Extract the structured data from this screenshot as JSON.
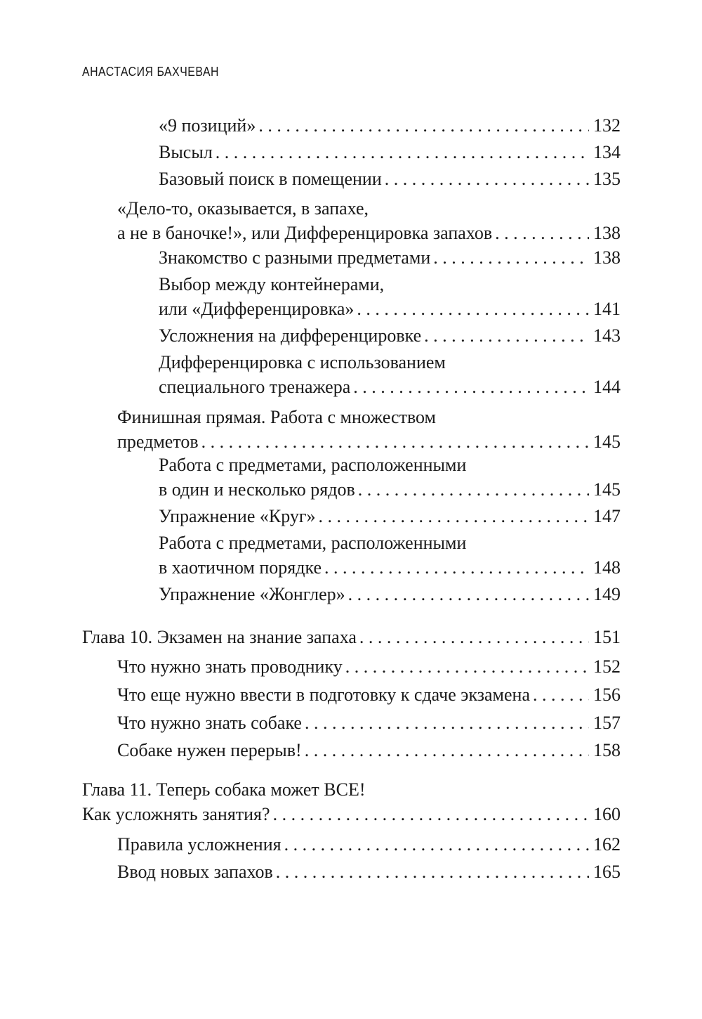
{
  "running_head": "АНАСТАСИЯ БАХЧЕВАН",
  "toc": [
    {
      "level": 2,
      "lines": [
        "«9 позиций»"
      ],
      "page": "132"
    },
    {
      "level": 2,
      "lines": [
        "Высыл"
      ],
      "page": "134"
    },
    {
      "level": 2,
      "lines": [
        "Базовый поиск в помещении"
      ],
      "page": "135"
    },
    {
      "level": 1,
      "lines": [
        "«Дело-то, оказывается, в запахе,",
        "а не в баночке!», или Дифференцировка запахов"
      ],
      "page": "138"
    },
    {
      "level": 2,
      "lines": [
        "Знакомство с разными предметами"
      ],
      "page": "138"
    },
    {
      "level": 2,
      "lines": [
        "Выбор между контейнерами,",
        "или «Дифференцировка»"
      ],
      "page": "141"
    },
    {
      "level": 2,
      "lines": [
        "Усложнения на дифференцировке"
      ],
      "page": "143"
    },
    {
      "level": 2,
      "lines": [
        "Дифференцировка с использованием",
        "специального тренажера"
      ],
      "page": "144"
    },
    {
      "level": 1,
      "lines": [
        "Финишная прямая. Работа с множеством",
        "предметов"
      ],
      "page": "145"
    },
    {
      "level": 2,
      "lines": [
        "Работа с предметами, расположенными",
        "в один и несколько рядов"
      ],
      "page": "145"
    },
    {
      "level": 2,
      "lines": [
        "Упражнение «Круг»"
      ],
      "page": "147"
    },
    {
      "level": 2,
      "lines": [
        "Работа с предметами, расположенными",
        "в хаотичном порядке"
      ],
      "page": "148"
    },
    {
      "level": 2,
      "lines": [
        "Упражнение «Жонглер»"
      ],
      "page": "149"
    },
    {
      "level": 0,
      "lines": [
        "Глава 10. Экзамен на знание запаха"
      ],
      "page": "151"
    },
    {
      "level": 1,
      "lines": [
        "Что нужно знать проводнику"
      ],
      "page": "152"
    },
    {
      "level": 1,
      "lines": [
        "Что еще нужно ввести в подготовку к сдаче экзамена"
      ],
      "page": "156"
    },
    {
      "level": 1,
      "lines": [
        "Что нужно знать собаке"
      ],
      "page": "157"
    },
    {
      "level": 1,
      "lines": [
        "Собаке нужен перерыв!"
      ],
      "page": "158"
    },
    {
      "level": 0,
      "lines": [
        "Глава 11. Теперь собака может ВСЕ!",
        "Как усложнять занятия?"
      ],
      "page": "160"
    },
    {
      "level": 1,
      "lines": [
        "Правила усложнения"
      ],
      "page": "162"
    },
    {
      "level": 1,
      "lines": [
        "Ввод новых запахов"
      ],
      "page": "165"
    }
  ]
}
